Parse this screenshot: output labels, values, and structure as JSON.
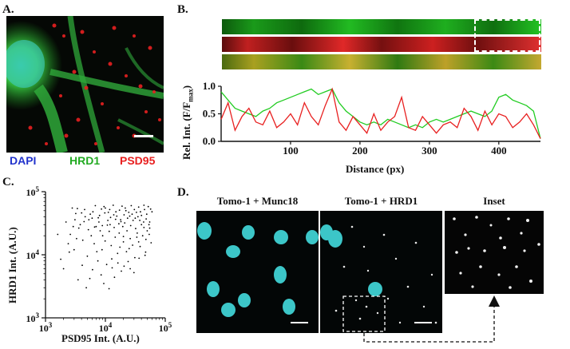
{
  "panels": {
    "a": {
      "label": "A.",
      "legend": {
        "dapi": "DAPI",
        "hrd1": "HRD1",
        "psd95": "PSD95"
      },
      "colors": {
        "dapi": "#2233cc",
        "hrd1": "#22aa22",
        "psd95": "#e82020"
      }
    },
    "b": {
      "label": "B.",
      "colors": {
        "green": "#22cc22",
        "red": "#e82020"
      }
    },
    "c": {
      "label": "C."
    },
    "d": {
      "label": "D.",
      "titles": [
        "Tomo-1 + Munc18",
        "Tomo-1 + HRD1",
        "Inset"
      ],
      "nucleus_color": "#3cc6c8"
    }
  },
  "chart_data": [
    {
      "type": "line",
      "xlabel": "Distance (px)",
      "ylabel": "Rel. Int. (F/F",
      "ylabel_sub": "max",
      "ylabel_close": ")",
      "xlim": [
        0,
        460
      ],
      "ylim": [
        0,
        1.0
      ],
      "xticks": [
        "100",
        "200",
        "300",
        "400"
      ],
      "yticks": [
        "0.0",
        "0.5",
        "1.0"
      ],
      "series": [
        {
          "color": "#22cc22",
          "x": [
            0,
            10,
            20,
            30,
            40,
            50,
            60,
            70,
            80,
            90,
            100,
            110,
            120,
            130,
            140,
            150,
            160,
            170,
            180,
            190,
            200,
            210,
            220,
            230,
            240,
            250,
            260,
            270,
            280,
            290,
            300,
            310,
            320,
            330,
            340,
            350,
            360,
            370,
            380,
            390,
            400,
            410,
            420,
            430,
            440,
            450,
            460
          ],
          "y": [
            0.9,
            0.75,
            0.6,
            0.55,
            0.5,
            0.45,
            0.55,
            0.6,
            0.7,
            0.75,
            0.8,
            0.85,
            0.9,
            0.95,
            0.85,
            0.9,
            0.95,
            0.7,
            0.55,
            0.45,
            0.35,
            0.3,
            0.35,
            0.3,
            0.4,
            0.35,
            0.3,
            0.25,
            0.3,
            0.25,
            0.35,
            0.4,
            0.35,
            0.4,
            0.45,
            0.5,
            0.55,
            0.5,
            0.45,
            0.55,
            0.8,
            0.85,
            0.75,
            0.7,
            0.65,
            0.55,
            0.05
          ]
        },
        {
          "color": "#e82020",
          "x": [
            0,
            10,
            20,
            30,
            40,
            50,
            60,
            70,
            80,
            90,
            100,
            110,
            120,
            130,
            140,
            150,
            160,
            170,
            180,
            190,
            200,
            210,
            220,
            230,
            240,
            250,
            260,
            270,
            280,
            290,
            300,
            310,
            320,
            330,
            340,
            350,
            360,
            370,
            380,
            390,
            400,
            410,
            420,
            430,
            440,
            450,
            460
          ],
          "y": [
            0.4,
            0.7,
            0.2,
            0.45,
            0.6,
            0.35,
            0.3,
            0.55,
            0.25,
            0.35,
            0.5,
            0.3,
            0.7,
            0.45,
            0.3,
            0.65,
            0.95,
            0.35,
            0.2,
            0.45,
            0.3,
            0.15,
            0.5,
            0.2,
            0.35,
            0.45,
            0.8,
            0.25,
            0.2,
            0.45,
            0.3,
            0.15,
            0.3,
            0.35,
            0.25,
            0.6,
            0.45,
            0.2,
            0.55,
            0.3,
            0.5,
            0.45,
            0.25,
            0.35,
            0.5,
            0.3,
            0.05
          ]
        }
      ]
    },
    {
      "type": "scatter",
      "xlabel": "PSD95 Int. (A.U.)",
      "ylabel": "HRD1 Int. (A.U.)",
      "xscale": "log",
      "yscale": "log",
      "xlim": [
        1000,
        100000
      ],
      "ylim": [
        1000,
        100000
      ],
      "xticks": [
        {
          "base": "10",
          "exp": "3"
        },
        {
          "base": "10",
          "exp": "4"
        },
        {
          "base": "10",
          "exp": "5"
        }
      ],
      "yticks": [
        {
          "base": "10",
          "exp": "3"
        },
        {
          "base": "10",
          "exp": "4"
        },
        {
          "base": "10",
          "exp": "5"
        }
      ],
      "color": "#000000",
      "points": [
        [
          3200,
          45000
        ],
        [
          4500,
          52000
        ],
        [
          6000,
          38000
        ],
        [
          8000,
          42000
        ],
        [
          10000,
          55000
        ],
        [
          12000,
          30000
        ],
        [
          15000,
          48000
        ],
        [
          18000,
          36000
        ],
        [
          22000,
          50000
        ],
        [
          28000,
          44000
        ],
        [
          35000,
          40000
        ],
        [
          45000,
          52000
        ],
        [
          55000,
          33000
        ],
        [
          3800,
          30000
        ],
        [
          5200,
          25000
        ],
        [
          7000,
          28000
        ],
        [
          9000,
          20000
        ],
        [
          11000,
          35000
        ],
        [
          14000,
          27000
        ],
        [
          17000,
          22000
        ],
        [
          21000,
          32000
        ],
        [
          26000,
          18000
        ],
        [
          32000,
          26000
        ],
        [
          40000,
          30000
        ],
        [
          50000,
          24000
        ],
        [
          2600,
          21000
        ],
        [
          4200,
          17000
        ],
        [
          6500,
          15000
        ],
        [
          8800,
          12000
        ],
        [
          12500,
          14000
        ],
        [
          16000,
          10500
        ],
        [
          20000,
          16000
        ],
        [
          25000,
          12500
        ],
        [
          31000,
          9000
        ],
        [
          38000,
          13500
        ],
        [
          47000,
          11000
        ],
        [
          58000,
          15500
        ],
        [
          3000,
          12000
        ],
        [
          5000,
          9500
        ],
        [
          7500,
          8000
        ],
        [
          10500,
          7000
        ],
        [
          13000,
          6200
        ],
        [
          18500,
          5500
        ],
        [
          24000,
          7800
        ],
        [
          30000,
          5200
        ],
        [
          2000,
          6000
        ],
        [
          3500,
          4000
        ],
        [
          5500,
          4200
        ],
        [
          8500,
          4800
        ],
        [
          1600,
          21000
        ],
        [
          2200,
          33000
        ],
        [
          2800,
          55000
        ],
        [
          6800,
          60000
        ],
        [
          9500,
          58000
        ],
        [
          13500,
          61000
        ],
        [
          19000,
          59000
        ],
        [
          27000,
          60000
        ],
        [
          36000,
          57000
        ],
        [
          44000,
          61000
        ],
        [
          52000,
          58000
        ],
        [
          11500,
          2900
        ],
        [
          4800,
          3000
        ],
        [
          2500,
          11000
        ],
        [
          1800,
          8500
        ],
        [
          60000,
          48000
        ],
        [
          42000,
          20000
        ],
        [
          36000,
          16000
        ],
        [
          15500,
          41000
        ],
        [
          19500,
          28000
        ],
        [
          23500,
          38000
        ],
        [
          7800,
          33000
        ],
        [
          9800,
          46000
        ],
        [
          12200,
          39000
        ],
        [
          16800,
          31000
        ],
        [
          29000,
          35000
        ],
        [
          33000,
          47000
        ],
        [
          48000,
          37000
        ],
        [
          40000,
          42000
        ],
        [
          6200,
          48000
        ],
        [
          4600,
          40000
        ],
        [
          2900,
          28000
        ],
        [
          11800,
          52000
        ],
        [
          21500,
          55000
        ],
        [
          26500,
          29000
        ],
        [
          14600,
          19000
        ],
        [
          8200,
          24000
        ],
        [
          5800,
          20000
        ],
        [
          34000,
          22000
        ],
        [
          44000,
          27000
        ],
        [
          54000,
          21000
        ],
        [
          3300,
          18000
        ],
        [
          9900,
          16500
        ],
        [
          17500,
          13200
        ],
        [
          22500,
          11200
        ],
        [
          28500,
          14200
        ],
        [
          36500,
          8800
        ],
        [
          46000,
          9800
        ],
        [
          7200,
          11200
        ],
        [
          12800,
          8600
        ],
        [
          16200,
          7400
        ],
        [
          20500,
          6600
        ],
        [
          26000,
          6000
        ],
        [
          4100,
          6800
        ],
        [
          6100,
          5800
        ],
        [
          14200,
          4400
        ],
        [
          9400,
          3500
        ],
        [
          3100,
          36000
        ],
        [
          5600,
          44000
        ],
        [
          8600,
          53000
        ],
        [
          11200,
          47000
        ],
        [
          13800,
          43000
        ],
        [
          17200,
          51000
        ],
        [
          24600,
          47000
        ],
        [
          30500,
          52000
        ],
        [
          38500,
          48000
        ],
        [
          49000,
          44000
        ],
        [
          57000,
          53000
        ],
        [
          20500,
          43000
        ],
        [
          25500,
          41000
        ],
        [
          31500,
          38000
        ],
        [
          37500,
          35000
        ],
        [
          43500,
          33000
        ],
        [
          53500,
          30000
        ],
        [
          18200,
          33500
        ],
        [
          14800,
          36500
        ],
        [
          10800,
          29500
        ],
        [
          7600,
          38500
        ],
        [
          6600,
          27500
        ],
        [
          4400,
          33500
        ],
        [
          3600,
          26500
        ],
        [
          2400,
          15000
        ],
        [
          55000,
          26500
        ],
        [
          47500,
          17500
        ],
        [
          33500,
          19000
        ],
        [
          23000,
          24000
        ],
        [
          20000,
          19500
        ],
        [
          11600,
          23500
        ],
        [
          8900,
          29000
        ],
        [
          5300,
          36000
        ],
        [
          4000,
          46000
        ],
        [
          3400,
          54000
        ]
      ]
    }
  ]
}
